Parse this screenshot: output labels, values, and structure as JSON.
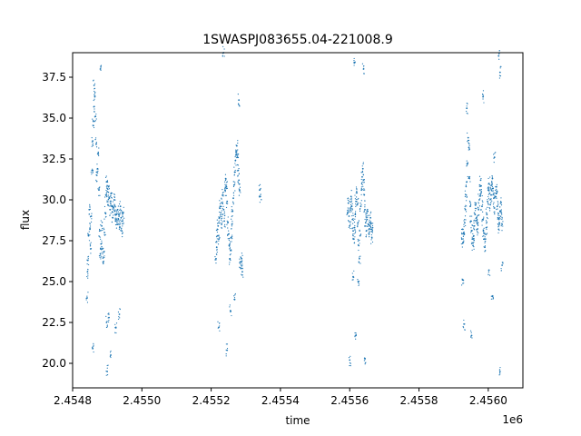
{
  "chart_data": {
    "type": "scatter",
    "title": "1SWASPJ083655.04-221008.9",
    "xlabel": "time",
    "ylabel": "flux",
    "x_offset_label": "1e6",
    "xlim": [
      2454800,
      2456100
    ],
    "ylim": [
      18.5,
      39.0
    ],
    "x_ticks": [
      2454800,
      2455000,
      2455200,
      2455400,
      2455600,
      2455800,
      2456000
    ],
    "x_tick_labels": [
      "2.4548",
      "2.4550",
      "2.4552",
      "2.4554",
      "2.4556",
      "2.4558",
      "2.4560"
    ],
    "y_ticks": [
      20.0,
      22.5,
      25.0,
      27.5,
      30.0,
      32.5,
      35.0,
      37.5
    ],
    "y_tick_labels": [
      "20.0",
      "22.5",
      "25.0",
      "27.5",
      "30.0",
      "32.5",
      "35.0",
      "37.5"
    ],
    "grid": false,
    "point_color": "#1f77b4",
    "series": [
      {
        "values_xy": [
          [
            2454843,
            25.6
          ],
          [
            2454844,
            26.3
          ],
          [
            2454846,
            27.8
          ],
          [
            2454848,
            29.4
          ],
          [
            2454850,
            28.2
          ],
          [
            2454852,
            27.0
          ],
          [
            2454854,
            29.0
          ],
          [
            2454856,
            31.8
          ],
          [
            2454858,
            33.6
          ],
          [
            2454860,
            34.8
          ],
          [
            2454862,
            35.7
          ],
          [
            2454864,
            36.3
          ],
          [
            2454866,
            35.1
          ],
          [
            2454868,
            33.4
          ],
          [
            2454870,
            31.5
          ],
          [
            2454872,
            31.9
          ],
          [
            2454874,
            32.8
          ],
          [
            2454876,
            30.6
          ],
          [
            2454878,
            28.1
          ],
          [
            2454880,
            26.7
          ],
          [
            2454882,
            27.3
          ],
          [
            2454884,
            28.4
          ],
          [
            2454886,
            27.0
          ],
          [
            2454888,
            26.2
          ],
          [
            2454890,
            26.8
          ],
          [
            2454892,
            28.0
          ],
          [
            2454894,
            29.2
          ],
          [
            2454896,
            30.3
          ],
          [
            2454898,
            31.1
          ],
          [
            2454900,
            30.5
          ],
          [
            2454902,
            29.7
          ],
          [
            2454904,
            30.8
          ],
          [
            2454906,
            30.1
          ],
          [
            2454908,
            29.4
          ],
          [
            2454910,
            29.9
          ],
          [
            2454912,
            30.4
          ],
          [
            2454914,
            29.6
          ],
          [
            2454916,
            28.9
          ],
          [
            2454918,
            29.5
          ],
          [
            2454920,
            30.0
          ],
          [
            2454922,
            29.3
          ],
          [
            2454924,
            28.7
          ],
          [
            2454926,
            29.1
          ],
          [
            2454928,
            28.5
          ],
          [
            2454930,
            29.4
          ],
          [
            2454932,
            28.8
          ],
          [
            2454934,
            29.0
          ],
          [
            2454936,
            28.3
          ],
          [
            2454938,
            29.6
          ],
          [
            2454940,
            28.9
          ],
          [
            2454942,
            28.1
          ],
          [
            2454944,
            28.7
          ],
          [
            2454946,
            29.2
          ],
          [
            2454842,
            24.0
          ],
          [
            2454858,
            20.9
          ],
          [
            2454862,
            37.0
          ],
          [
            2454880,
            38.0
          ],
          [
            2454898,
            22.5
          ],
          [
            2454900,
            19.5
          ],
          [
            2454905,
            22.8
          ],
          [
            2454910,
            20.5
          ],
          [
            2454925,
            22.2
          ],
          [
            2454935,
            23.0
          ]
        ]
      },
      {
        "values_xy": [
          [
            2455214,
            26.4
          ],
          [
            2455216,
            27.1
          ],
          [
            2455218,
            27.8
          ],
          [
            2455220,
            28.4
          ],
          [
            2455222,
            27.6
          ],
          [
            2455224,
            28.9
          ],
          [
            2455226,
            29.6
          ],
          [
            2455228,
            29.2
          ],
          [
            2455230,
            28.5
          ],
          [
            2455232,
            29.8
          ],
          [
            2455234,
            30.3
          ],
          [
            2455236,
            29.4
          ],
          [
            2455238,
            28.7
          ],
          [
            2455240,
            30.6
          ],
          [
            2455242,
            31.3
          ],
          [
            2455244,
            30.8
          ],
          [
            2455246,
            29.9
          ],
          [
            2455248,
            28.6
          ],
          [
            2455250,
            27.9
          ],
          [
            2455252,
            27.2
          ],
          [
            2455254,
            26.4
          ],
          [
            2455256,
            26.9
          ],
          [
            2455258,
            27.7
          ],
          [
            2455260,
            28.5
          ],
          [
            2455262,
            29.3
          ],
          [
            2455264,
            30.1
          ],
          [
            2455266,
            30.9
          ],
          [
            2455268,
            31.7
          ],
          [
            2455270,
            32.4
          ],
          [
            2455272,
            32.9
          ],
          [
            2455274,
            33.3
          ],
          [
            2455276,
            32.6
          ],
          [
            2455278,
            31.8
          ],
          [
            2455280,
            31.2
          ],
          [
            2455282,
            30.6
          ],
          [
            2455284,
            26.2
          ],
          [
            2455286,
            25.8
          ],
          [
            2455288,
            26.4
          ],
          [
            2455290,
            25.6
          ],
          [
            2455222,
            22.2
          ],
          [
            2455236,
            39.0
          ],
          [
            2455246,
            20.8
          ],
          [
            2455256,
            23.2
          ],
          [
            2455268,
            23.9
          ],
          [
            2455280,
            36.1
          ],
          [
            2455340,
            30.6
          ],
          [
            2455342,
            30.2
          ]
        ]
      },
      {
        "values_xy": [
          [
            2455594,
            29.2
          ],
          [
            2455596,
            29.8
          ],
          [
            2455598,
            29.0
          ],
          [
            2455600,
            28.4
          ],
          [
            2455602,
            29.5
          ],
          [
            2455604,
            30.2
          ],
          [
            2455606,
            29.6
          ],
          [
            2455608,
            28.8
          ],
          [
            2455610,
            28.1
          ],
          [
            2455612,
            27.6
          ],
          [
            2455614,
            28.3
          ],
          [
            2455616,
            29.1
          ],
          [
            2455618,
            29.9
          ],
          [
            2455620,
            30.5
          ],
          [
            2455622,
            29.7
          ],
          [
            2455624,
            28.6
          ],
          [
            2455626,
            27.2
          ],
          [
            2455628,
            26.4
          ],
          [
            2455630,
            27.8
          ],
          [
            2455632,
            29.6
          ],
          [
            2455634,
            30.6
          ],
          [
            2455636,
            31.4
          ],
          [
            2455638,
            31.9
          ],
          [
            2455640,
            31.2
          ],
          [
            2455642,
            30.3
          ],
          [
            2455644,
            29.4
          ],
          [
            2455646,
            28.6
          ],
          [
            2455648,
            28.1
          ],
          [
            2455650,
            28.8
          ],
          [
            2455652,
            29.3
          ],
          [
            2455654,
            28.5
          ],
          [
            2455656,
            27.9
          ],
          [
            2455658,
            28.4
          ],
          [
            2455660,
            28.9
          ],
          [
            2455662,
            28.2
          ],
          [
            2455664,
            27.7
          ],
          [
            2455666,
            28.3
          ],
          [
            2455614,
            38.4
          ],
          [
            2455618,
            21.7
          ],
          [
            2455600,
            20.2
          ],
          [
            2455640,
            38.0
          ],
          [
            2455644,
            20.3
          ],
          [
            2455610,
            25.3
          ],
          [
            2455625,
            25.0
          ]
        ]
      },
      {
        "values_xy": [
          [
            2455924,
            27.6
          ],
          [
            2455926,
            28.2
          ],
          [
            2455928,
            27.4
          ],
          [
            2455930,
            27.9
          ],
          [
            2455932,
            28.6
          ],
          [
            2455934,
            29.4
          ],
          [
            2455936,
            30.3
          ],
          [
            2455938,
            31.1
          ],
          [
            2455940,
            32.2
          ],
          [
            2455942,
            33.8
          ],
          [
            2455944,
            33.2
          ],
          [
            2455946,
            31.4
          ],
          [
            2455948,
            29.6
          ],
          [
            2455950,
            28.7
          ],
          [
            2455952,
            28.1
          ],
          [
            2455954,
            27.6
          ],
          [
            2455956,
            27.2
          ],
          [
            2455958,
            27.8
          ],
          [
            2455960,
            28.4
          ],
          [
            2455962,
            29.1
          ],
          [
            2455964,
            29.8
          ],
          [
            2455966,
            28.9
          ],
          [
            2455968,
            28.2
          ],
          [
            2455970,
            28.6
          ],
          [
            2455972,
            29.4
          ],
          [
            2455974,
            30.0
          ],
          [
            2455976,
            30.6
          ],
          [
            2455978,
            31.2
          ],
          [
            2455980,
            30.5
          ],
          [
            2455982,
            29.6
          ],
          [
            2455984,
            28.8
          ],
          [
            2455986,
            28.1
          ],
          [
            2455988,
            27.6
          ],
          [
            2455990,
            27.1
          ],
          [
            2455992,
            27.6
          ],
          [
            2455994,
            28.3
          ],
          [
            2455996,
            29.1
          ],
          [
            2455998,
            29.9
          ],
          [
            2456000,
            30.6
          ],
          [
            2456002,
            31.0
          ],
          [
            2456004,
            30.4
          ],
          [
            2456006,
            29.7
          ],
          [
            2456008,
            30.3
          ],
          [
            2456010,
            30.9
          ],
          [
            2456012,
            31.3
          ],
          [
            2456014,
            30.7
          ],
          [
            2456016,
            30.1
          ],
          [
            2456018,
            29.5
          ],
          [
            2456020,
            30.2
          ],
          [
            2456022,
            30.8
          ],
          [
            2456024,
            30.4
          ],
          [
            2456026,
            29.6
          ],
          [
            2456028,
            28.9
          ],
          [
            2456030,
            28.2
          ],
          [
            2456032,
            28.6
          ],
          [
            2456034,
            29.3
          ],
          [
            2456036,
            29.8
          ],
          [
            2456038,
            29.2
          ],
          [
            2456040,
            28.5
          ],
          [
            2455926,
            25.1
          ],
          [
            2455930,
            22.4
          ],
          [
            2455938,
            35.6
          ],
          [
            2455952,
            21.7
          ],
          [
            2455985,
            36.3
          ],
          [
            2456002,
            25.7
          ],
          [
            2456012,
            24.1
          ],
          [
            2456030,
            38.8
          ],
          [
            2456034,
            37.8
          ],
          [
            2456034,
            19.5
          ],
          [
            2456018,
            32.6
          ],
          [
            2456040,
            26.0
          ]
        ]
      }
    ]
  }
}
